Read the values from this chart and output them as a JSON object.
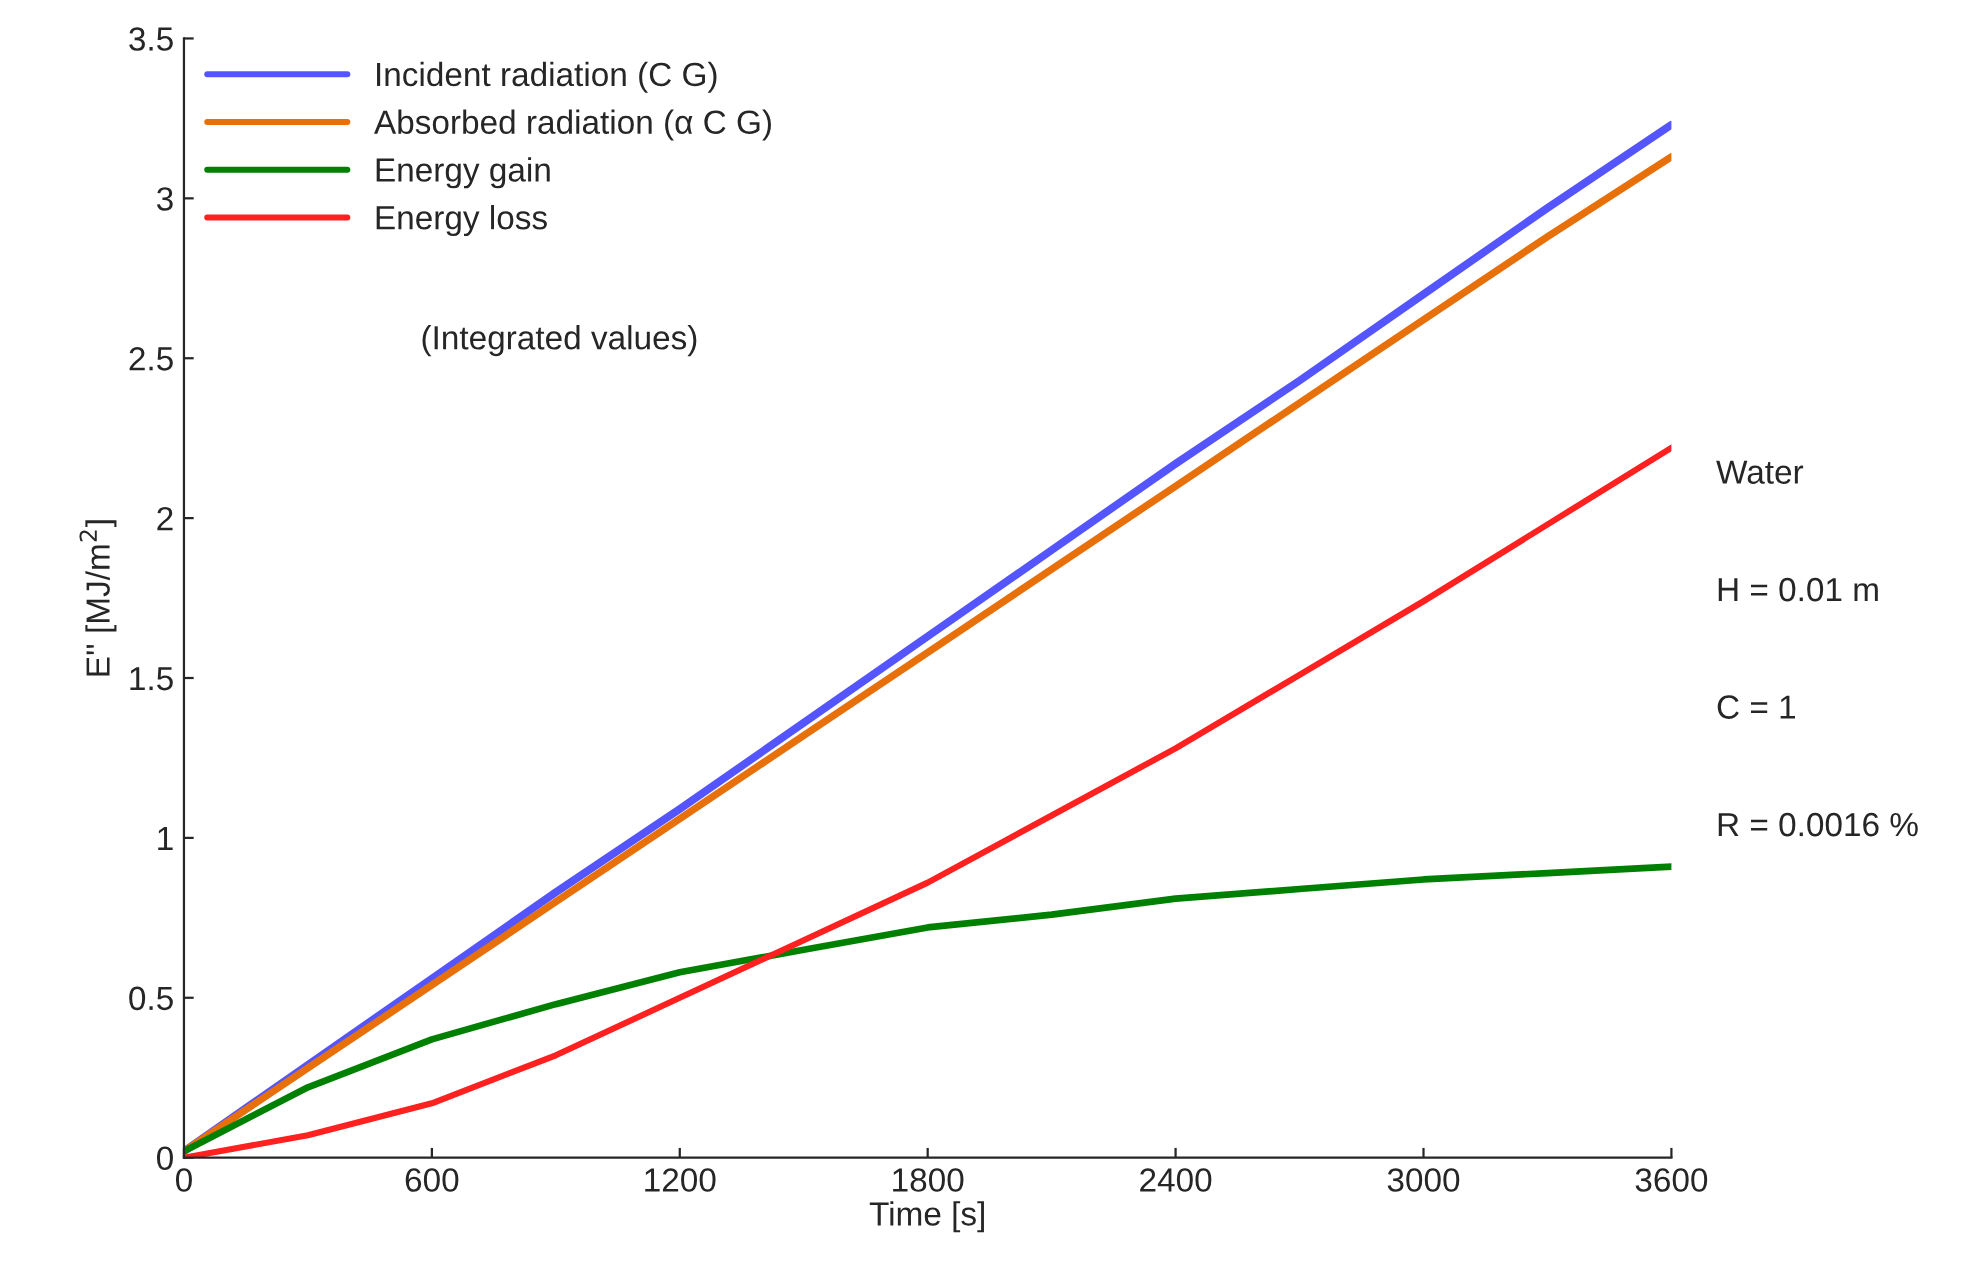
{
  "chart_data": {
    "type": "line",
    "xlabel": "Time [s]",
    "ylabel": "E'' [MJ/m$^{2}$]",
    "x": [
      0,
      300,
      600,
      900,
      1200,
      1500,
      1800,
      2100,
      2400,
      2700,
      3000,
      3300,
      3600
    ],
    "series": [
      {
        "name": "Incident radiation (C G)",
        "color": "#5555ff",
        "values": [
          0.02,
          0.29,
          0.56,
          0.83,
          1.09,
          1.36,
          1.63,
          1.9,
          2.17,
          2.43,
          2.7,
          2.97,
          3.23
        ]
      },
      {
        "name": "Absorbed radiation (α C G)",
        "color": "#e8700a",
        "values": [
          0.02,
          0.28,
          0.54,
          0.8,
          1.06,
          1.32,
          1.58,
          1.84,
          2.1,
          2.36,
          2.62,
          2.88,
          3.13
        ]
      },
      {
        "name": "Energy gain",
        "color": "#008000",
        "values": [
          0.02,
          0.22,
          0.37,
          0.48,
          0.58,
          0.65,
          0.72,
          0.76,
          0.81,
          0.84,
          0.87,
          0.89,
          0.91
        ]
      },
      {
        "name": "Energy loss",
        "color": "#ff2020",
        "values": [
          0.0,
          0.07,
          0.17,
          0.32,
          0.5,
          0.68,
          0.86,
          1.07,
          1.28,
          1.51,
          1.74,
          1.98,
          2.22
        ]
      }
    ],
    "xlim": [
      0,
      3600
    ],
    "xticks": [
      0,
      600,
      1200,
      1800,
      2400,
      3000,
      3600
    ],
    "ylim": [
      0,
      3.5
    ],
    "yticks": [
      0,
      0.5,
      1,
      1.5,
      2,
      2.5,
      3,
      3.5
    ],
    "legend": "top left",
    "grid": false,
    "line_style": "solid",
    "marker": "none",
    "annotations": [
      "(Integrated values)",
      "Water",
      "H = 0.01 m",
      "C = 1",
      "R = 0.0016 %"
    ]
  }
}
